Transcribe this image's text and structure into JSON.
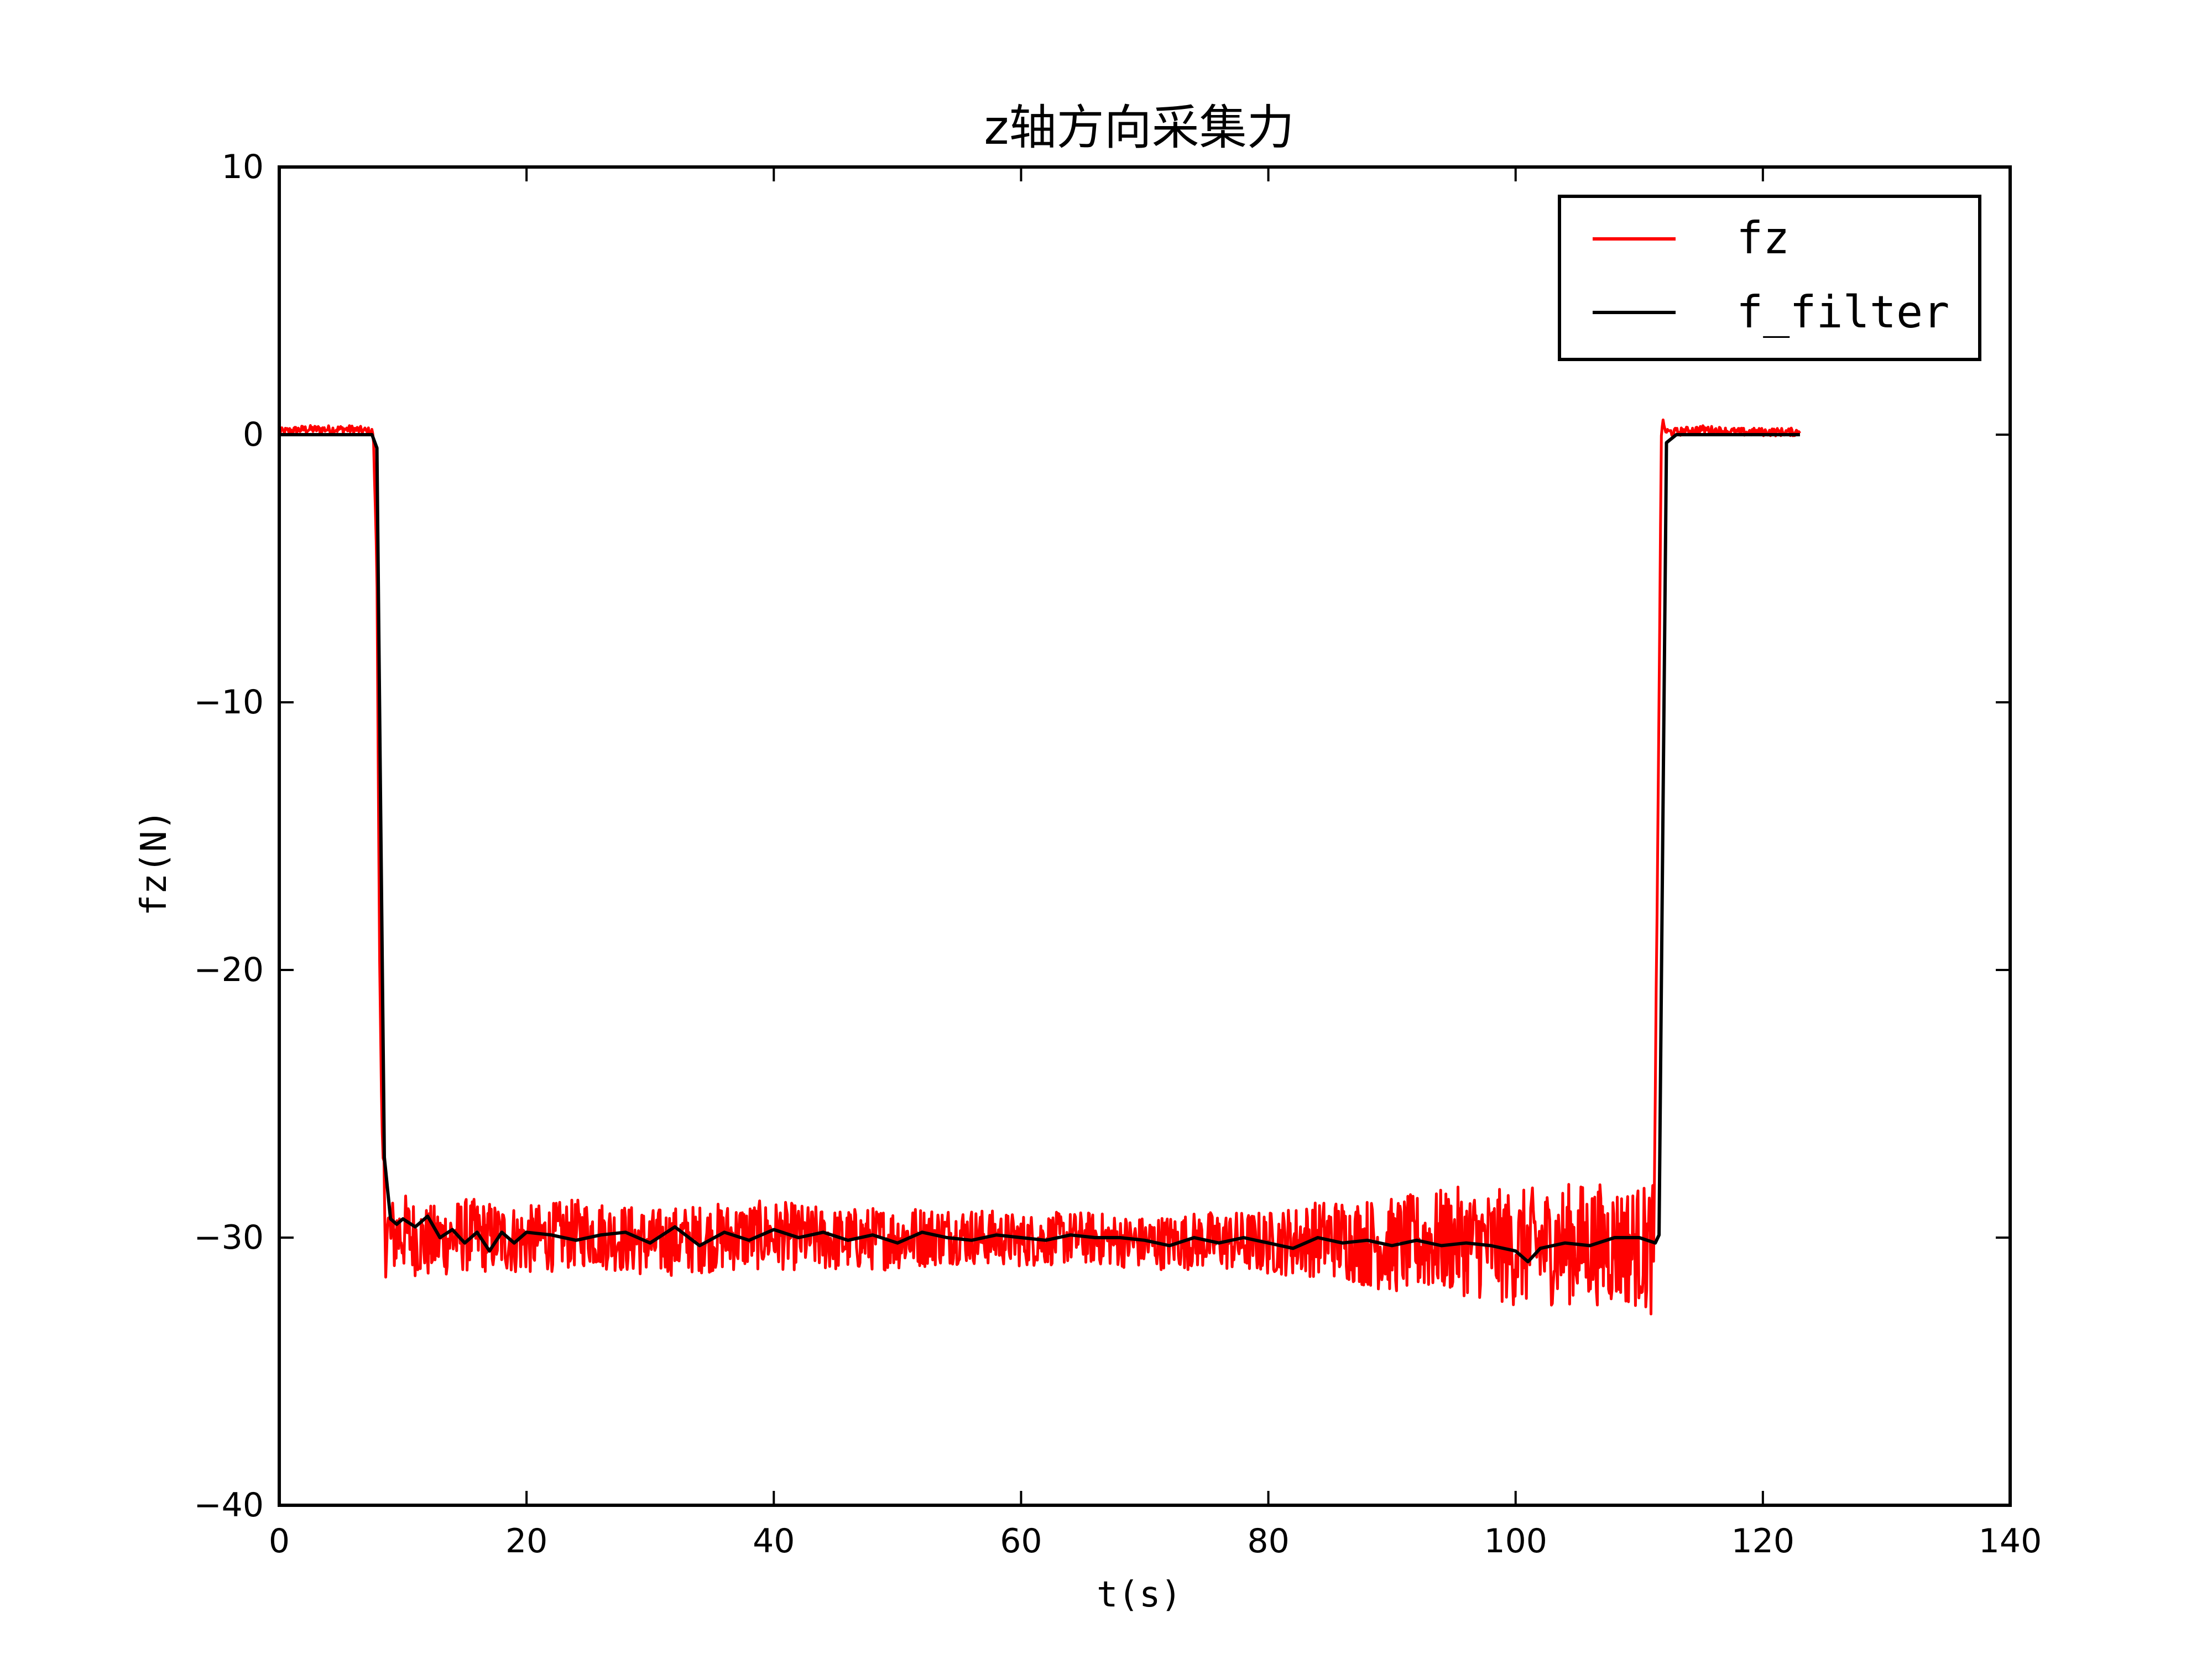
{
  "chart_data": {
    "type": "line",
    "title": "z轴方向采集力",
    "xlabel": "t(s)",
    "ylabel": "fz(N)",
    "xlim": [
      0,
      140
    ],
    "ylim": [
      -40,
      10
    ],
    "x_ticks": [
      0,
      20,
      40,
      60,
      80,
      100,
      120,
      140
    ],
    "y_ticks": [
      -40,
      -30,
      -20,
      -10,
      0,
      10
    ],
    "x_tick_labels": [
      "0",
      "20",
      "40",
      "60",
      "80",
      "100",
      "120",
      "140"
    ],
    "y_tick_labels": [
      "−40",
      "−30",
      "−20",
      "−10",
      "0",
      "10"
    ],
    "grid": false,
    "legend_position": "top-right",
    "series": [
      {
        "name": "fz",
        "color": "#ff0000",
        "x": [
          0,
          2,
          4,
          6,
          7.6,
          7.9,
          8.1,
          8.3,
          8.6,
          9,
          10,
          12,
          15,
          20,
          25,
          30,
          35,
          40,
          45,
          50,
          55,
          60,
          65,
          70,
          75,
          80,
          85,
          90,
          95,
          100,
          105,
          110,
          111.2,
          111.5,
          111.8,
          112.2,
          113,
          115,
          118,
          120,
          123
        ],
        "y": [
          0.1,
          0.2,
          0.2,
          0.2,
          0.1,
          -5,
          -19,
          -26,
          -29.5,
          -30,
          -29.8,
          -30.2,
          -29.9,
          -30.1,
          -29.8,
          -30.2,
          -30,
          -29.9,
          -30.1,
          -30,
          -29.9,
          -30.1,
          -30,
          -30.2,
          -30.1,
          -30.2,
          -30,
          -30.3,
          -30.1,
          -30.4,
          -30.2,
          -30.3,
          -30.5,
          -15,
          0.5,
          0.1,
          0.1,
          0.2,
          0.1,
          0.1,
          0.1
        ],
        "noise_amplitude": [
          0.15,
          0.15,
          0.15,
          0.15,
          0.15,
          0.1,
          0.1,
          0.1,
          2,
          1.5,
          1.5,
          1.4,
          1.4,
          1.3,
          1.3,
          1.3,
          1.3,
          1.3,
          1.2,
          1.2,
          1.1,
          1.0,
          1.0,
          1.0,
          1.1,
          1.2,
          1.5,
          1.8,
          2.0,
          2.2,
          2.3,
          2.3,
          2.5,
          0.1,
          0.2,
          0.15,
          0.15,
          0.15,
          0.15,
          0.15,
          0.15
        ]
      },
      {
        "name": "f_filter",
        "color": "#000000",
        "x": [
          0,
          4,
          7.5,
          7.9,
          8.2,
          8.5,
          9,
          9.5,
          10,
          11,
          12,
          13,
          14,
          15,
          16,
          17,
          18,
          19,
          20,
          22,
          24,
          26,
          28,
          30,
          32,
          34,
          36,
          38,
          40,
          42,
          44,
          46,
          48,
          50,
          52,
          54,
          56,
          58,
          60,
          62,
          64,
          66,
          68,
          70,
          72,
          74,
          76,
          78,
          80,
          82,
          84,
          86,
          88,
          90,
          92,
          94,
          96,
          98,
          100,
          101,
          102,
          104,
          106,
          108,
          110,
          111.3,
          111.6,
          111.9,
          112.2,
          113,
          116,
          120,
          123
        ],
        "y": [
          0,
          0,
          0,
          -0.5,
          -14,
          -27,
          -29.3,
          -29.5,
          -29.3,
          -29.6,
          -29.2,
          -30,
          -29.7,
          -30.2,
          -29.8,
          -30.5,
          -29.8,
          -30.2,
          -29.8,
          -29.9,
          -30.1,
          -29.9,
          -29.8,
          -30.2,
          -29.6,
          -30.3,
          -29.8,
          -30.1,
          -29.7,
          -30.0,
          -29.8,
          -30.1,
          -29.9,
          -30.2,
          -29.8,
          -30.0,
          -30.1,
          -29.9,
          -30.0,
          -30.1,
          -29.9,
          -30.0,
          -30.0,
          -30.1,
          -30.3,
          -30.0,
          -30.2,
          -30.0,
          -30.2,
          -30.4,
          -30.0,
          -30.2,
          -30.1,
          -30.3,
          -30.1,
          -30.3,
          -30.2,
          -30.3,
          -30.5,
          -30.9,
          -30.4,
          -30.2,
          -30.3,
          -30.0,
          -30.0,
          -30.2,
          -29.9,
          -15,
          -0.3,
          0,
          0,
          0,
          0
        ]
      }
    ]
  }
}
